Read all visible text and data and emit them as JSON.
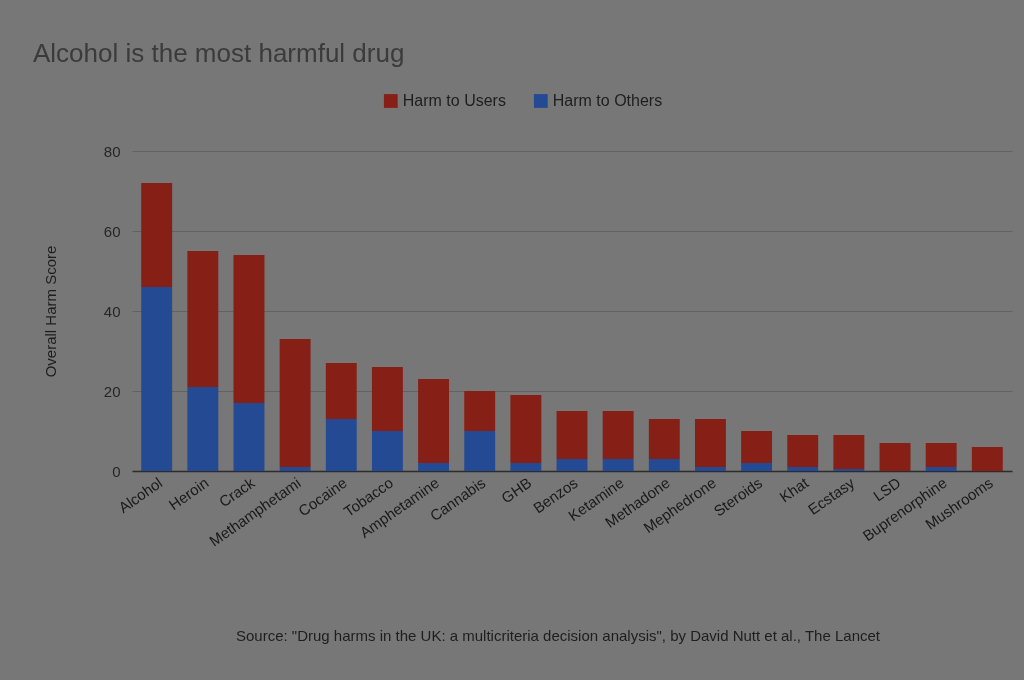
{
  "chart_data": {
    "type": "bar",
    "title": "Alcohol is the most harmful drug",
    "ylabel": "Overall Harm Score",
    "categories": [
      "Alcohol",
      "Heroin",
      "Crack",
      "Methamphetami",
      "Cocaine",
      "Tobacco",
      "Amphetamine",
      "Cannabis",
      "GHB",
      "Benzos",
      "Ketamine",
      "Methadone",
      "Mephedrone",
      "Steroids",
      "Khat",
      "Ecstasy",
      "LSD",
      "Buprenorphine",
      "Mushrooms"
    ],
    "series": [
      {
        "name": "Harm to Others",
        "color": "#254a94",
        "values": [
          46,
          21,
          17,
          1,
          13,
          10,
          2,
          10,
          2,
          3,
          3,
          3,
          1,
          2,
          1,
          0.5,
          0,
          1,
          0
        ]
      },
      {
        "name": "Harm to Users",
        "color": "#861f16",
        "values": [
          26,
          34,
          37,
          32,
          14,
          16,
          21,
          10,
          17,
          12,
          12,
          10,
          12,
          8,
          8,
          8.5,
          7,
          6,
          6
        ]
      }
    ],
    "stacked": true,
    "ylim": [
      0,
      80
    ],
    "yticks": [
      0,
      20,
      40,
      60,
      80
    ],
    "grid": "y",
    "legend": "top",
    "annotations": [
      "Source: \"Drug harms in the UK: a multicriteria decision analysis\", by David Nutt et al., The Lancet"
    ]
  }
}
